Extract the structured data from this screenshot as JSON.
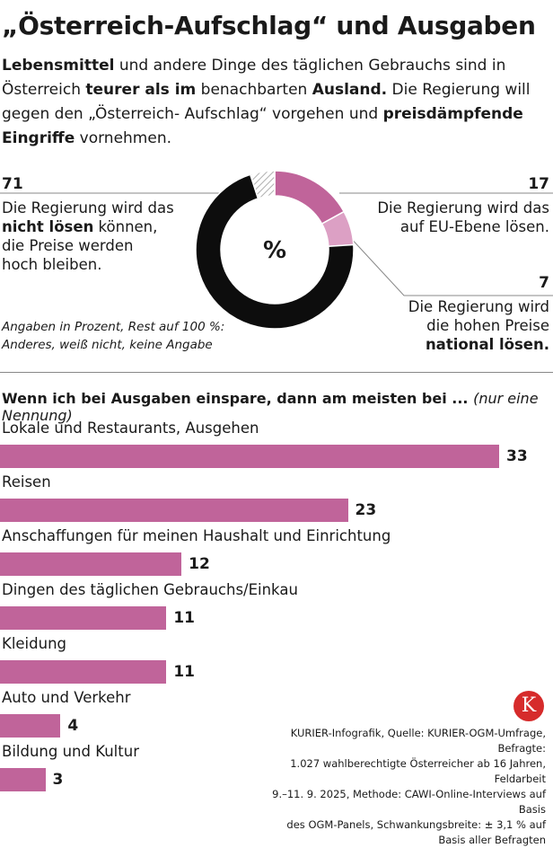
{
  "title": "„Österreich-Aufschlag“ und Ausgaben",
  "intro": {
    "l1_a": "Lebensmittel",
    "l1_b": " und andere Dinge des täglichen Gebrauchs sind in",
    "l2_a": "Österreich ",
    "l2_b": "teurer als im",
    "l2_c": " benachbarten ",
    "l2_d": "Ausland.",
    "l2_e": " Die Regierung will",
    "l3_a": "gegen den „Österreich- Aufschlag“  vorgehen und ",
    "l3_b": "preisdämpfende",
    "l4_a": "Eingriffe",
    "l4_b": " vornehmen."
  },
  "donut": {
    "center_label": "%",
    "left_value": "71",
    "left_l1": "Die Regierung wird das",
    "left_l2_bold": "nicht lösen",
    "left_l2_rest": " können,",
    "left_l3": "die Preise werden",
    "left_l4": "hoch bleiben.",
    "right_value": "17",
    "right_l1": "Die Regierung wird das",
    "right_l2": "auf EU-Ebene lösen.",
    "right2_value": "7",
    "right2_l1": "Die Regierung wird",
    "right2_l2": "die hohen Preise",
    "right2_l3_bold": "national lösen.",
    "note_l1": "Angaben in Prozent, Rest auf 100 %:",
    "note_l2": "Anderes, weiß nicht, keine Angabe"
  },
  "bars_question": {
    "bold": "Wenn ich bei Ausgaben einspare, dann am meisten bei ...",
    "italic": "(nur eine Nennung)"
  },
  "chart_data": [
    {
      "type": "pie",
      "title": "„Österreich-Aufschlag“",
      "unit": "%",
      "slices": [
        {
          "label": "Die Regierung wird das auf EU-Ebene lösen.",
          "value": 17,
          "color": "#c0649a"
        },
        {
          "label": "Die Regierung wird die hohen Preise national lösen.",
          "value": 7,
          "color": "#dca0c4"
        },
        {
          "label": "Die Regierung wird das nicht lösen können, die Preise werden hoch bleiben.",
          "value": 71,
          "color": "#0d0d0d"
        },
        {
          "label": "Anderes, weiß nicht, keine Angabe",
          "value": 5,
          "color": "#bdbdbd"
        }
      ]
    },
    {
      "type": "bar",
      "orientation": "horizontal",
      "title": "Wenn ich bei Ausgaben einspare, dann am meisten bei ... (nur eine Nennung)",
      "categories": [
        "Lokale und Restaurants,  Ausgehen",
        "Reisen",
        "Anschaffungen für meinen Haushalt und Einrichtung",
        "Dingen des täglichen Gebrauchs/Einkau",
        "Kleidung",
        "Auto und Verkehr",
        "Bildung und Kultur"
      ],
      "values": [
        33,
        23,
        12,
        11,
        11,
        4,
        3
      ],
      "color": "#c0649a",
      "xlim": [
        0,
        33
      ]
    }
  ],
  "source": {
    "l1": "KURIER-Infografik, Quelle: KURIER-OGM-Umfrage, Befragte:",
    "l2": "1.027 wahlberechtigte Österreicher ab 16 Jahren, Feldarbeit",
    "l3": "9.–11. 9. 2025,  Methode: CAWI-Online-Interviews auf Basis",
    "l4": "des OGM-Panels, Schwankungsbreite: ± 3,1 % auf",
    "l5": "Basis aller Befragten"
  },
  "logo_letter": "K"
}
